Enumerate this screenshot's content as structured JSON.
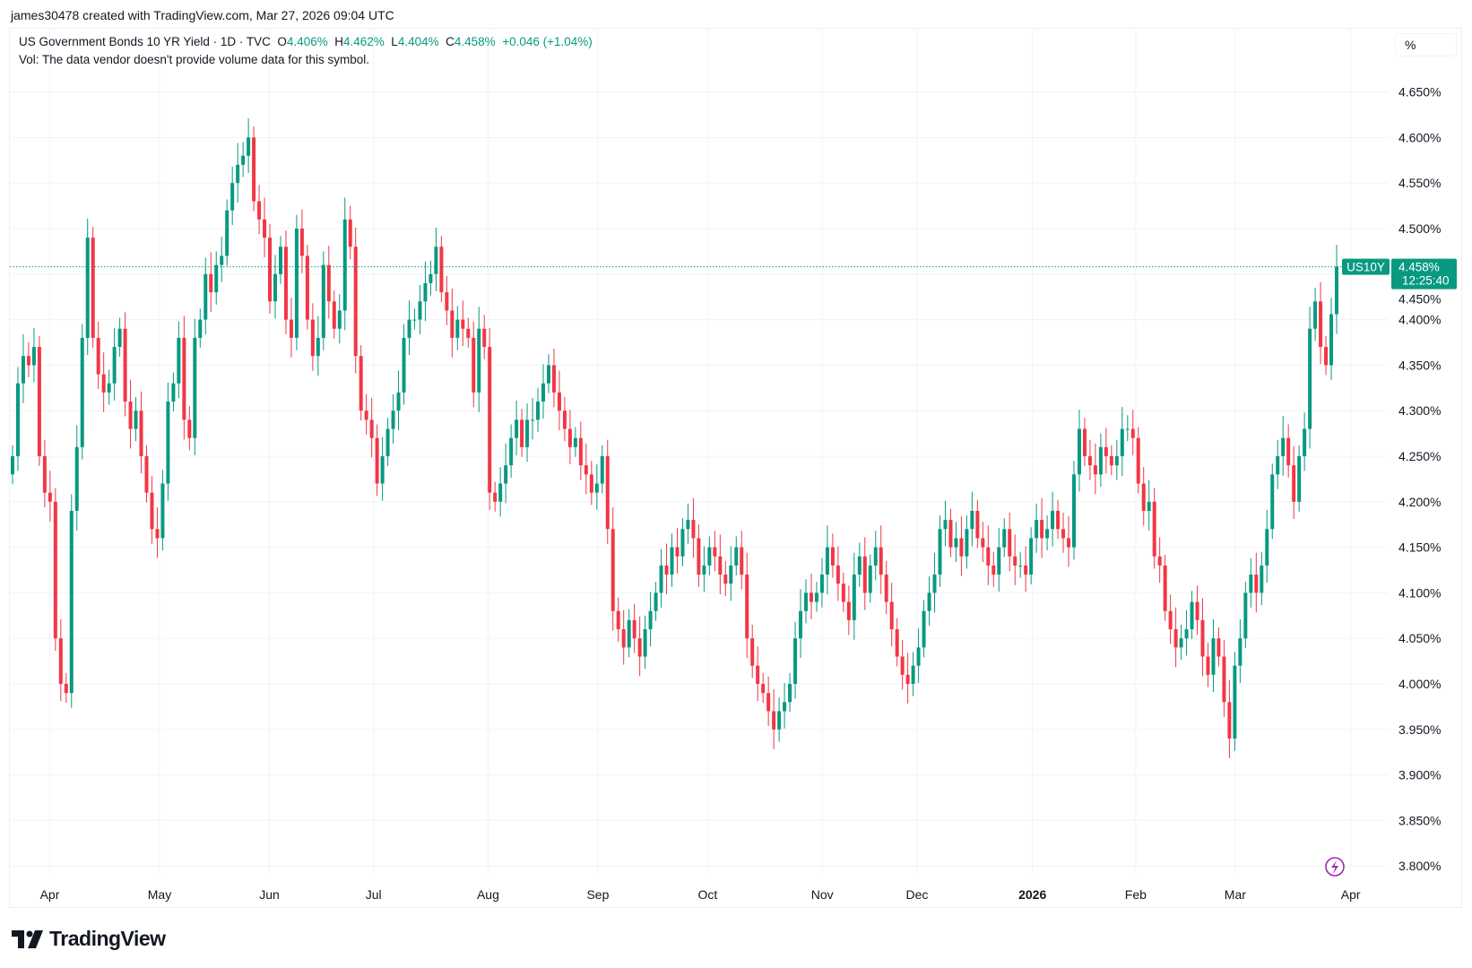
{
  "credit": "james30478 created with TradingView.com, Mar 27, 2026 09:04 UTC",
  "legend": {
    "symbol": "US Government Bonds 10 YR Yield · 1D · TVC",
    "o_label": "O",
    "o": "4.406%",
    "h_label": "H",
    "h": "4.462%",
    "l_label": "L",
    "l": "4.404%",
    "c_label": "C",
    "c": "4.458%",
    "change": "+0.046 (+1.04%)"
  },
  "vol_note": "Vol: The data vendor doesn't provide volume data for this symbol.",
  "unit_button": "%",
  "price_tag": {
    "ticker": "US10Y",
    "price": "4.458%",
    "countdown": "12:25:40"
  },
  "brand": "TradingView",
  "colors": {
    "up": "#089981",
    "down": "#f23645",
    "grid": "#f0f3fa",
    "text": "#131722",
    "icon": "#9c27b0"
  },
  "icons": {
    "lightning": "lightning-icon",
    "logo": "tradingview-logo"
  },
  "chart_data": {
    "type": "candlestick",
    "interval": "1D",
    "ylim": [
      3.775,
      4.675
    ],
    "y_ticks": [
      "4.650%",
      "4.600%",
      "4.550%",
      "4.500%",
      "4.450%",
      "4.400%",
      "4.350%",
      "4.300%",
      "4.250%",
      "4.200%",
      "4.150%",
      "4.100%",
      "4.050%",
      "4.000%",
      "3.950%",
      "3.900%",
      "3.850%",
      "3.800%"
    ],
    "x_ticks": [
      "Apr",
      "May",
      "Jun",
      "Jul",
      "Aug",
      "Sep",
      "Oct",
      "Nov",
      "Dec",
      "2026",
      "Feb",
      "Mar",
      "Apr"
    ],
    "grid": true,
    "last_value": 4.458,
    "closes": [
      4.25,
      4.33,
      4.36,
      4.35,
      4.37,
      4.25,
      4.21,
      4.2,
      4.05,
      4.0,
      3.99,
      4.19,
      4.26,
      4.38,
      4.49,
      4.38,
      4.34,
      4.32,
      4.33,
      4.37,
      4.39,
      4.31,
      4.28,
      4.3,
      4.25,
      4.21,
      4.17,
      4.16,
      4.22,
      4.31,
      4.33,
      4.38,
      4.29,
      4.27,
      4.38,
      4.4,
      4.45,
      4.43,
      4.46,
      4.47,
      4.52,
      4.55,
      4.57,
      4.58,
      4.6,
      4.53,
      4.51,
      4.49,
      4.42,
      4.45,
      4.48,
      4.4,
      4.38,
      4.5,
      4.47,
      4.4,
      4.36,
      4.38,
      4.46,
      4.42,
      4.39,
      4.41,
      4.51,
      4.48,
      4.36,
      4.3,
      4.29,
      4.27,
      4.22,
      4.25,
      4.28,
      4.3,
      4.32,
      4.38,
      4.4,
      4.4,
      4.42,
      4.44,
      4.45,
      4.48,
      4.43,
      4.41,
      4.38,
      4.4,
      4.39,
      4.38,
      4.32,
      4.39,
      4.37,
      4.21,
      4.2,
      4.22,
      4.24,
      4.27,
      4.29,
      4.26,
      4.29,
      4.29,
      4.31,
      4.33,
      4.35,
      4.32,
      4.3,
      4.28,
      4.26,
      4.27,
      4.24,
      4.23,
      4.21,
      4.22,
      4.25,
      4.17,
      4.08,
      4.06,
      4.04,
      4.07,
      4.05,
      4.03,
      4.06,
      4.08,
      4.1,
      4.13,
      4.12,
      4.15,
      4.14,
      4.17,
      4.18,
      4.16,
      4.12,
      4.13,
      4.15,
      4.14,
      4.12,
      4.11,
      4.13,
      4.15,
      4.12,
      4.05,
      4.02,
      4.0,
      3.99,
      3.97,
      3.95,
      3.97,
      3.98,
      4.0,
      4.05,
      4.08,
      4.1,
      4.09,
      4.1,
      4.12,
      4.15,
      4.13,
      4.11,
      4.09,
      4.07,
      4.12,
      4.14,
      4.1,
      4.13,
      4.15,
      4.12,
      4.09,
      4.06,
      4.03,
      4.01,
      4.0,
      4.02,
      4.04,
      4.08,
      4.1,
      4.12,
      4.17,
      4.18,
      4.15,
      4.16,
      4.14,
      4.17,
      4.19,
      4.16,
      4.15,
      4.13,
      4.12,
      4.15,
      4.17,
      4.14,
      4.13,
      4.13,
      4.12,
      4.16,
      4.18,
      4.16,
      4.17,
      4.19,
      4.17,
      4.16,
      4.15,
      4.23,
      4.28,
      4.25,
      4.24,
      4.23,
      4.26,
      4.25,
      4.24,
      4.25,
      4.28,
      4.28,
      4.27,
      4.22,
      4.19,
      4.2,
      4.14,
      4.13,
      4.08,
      4.06,
      4.04,
      4.05,
      4.06,
      4.09,
      4.07,
      4.03,
      4.01,
      4.05,
      4.03,
      3.98,
      3.94,
      4.02,
      4.05,
      4.1,
      4.12,
      4.1,
      4.13,
      4.17,
      4.23,
      4.25,
      4.27,
      4.24,
      4.2,
      4.25,
      4.28,
      4.39,
      4.42,
      4.37,
      4.35,
      4.406,
      4.458
    ]
  }
}
